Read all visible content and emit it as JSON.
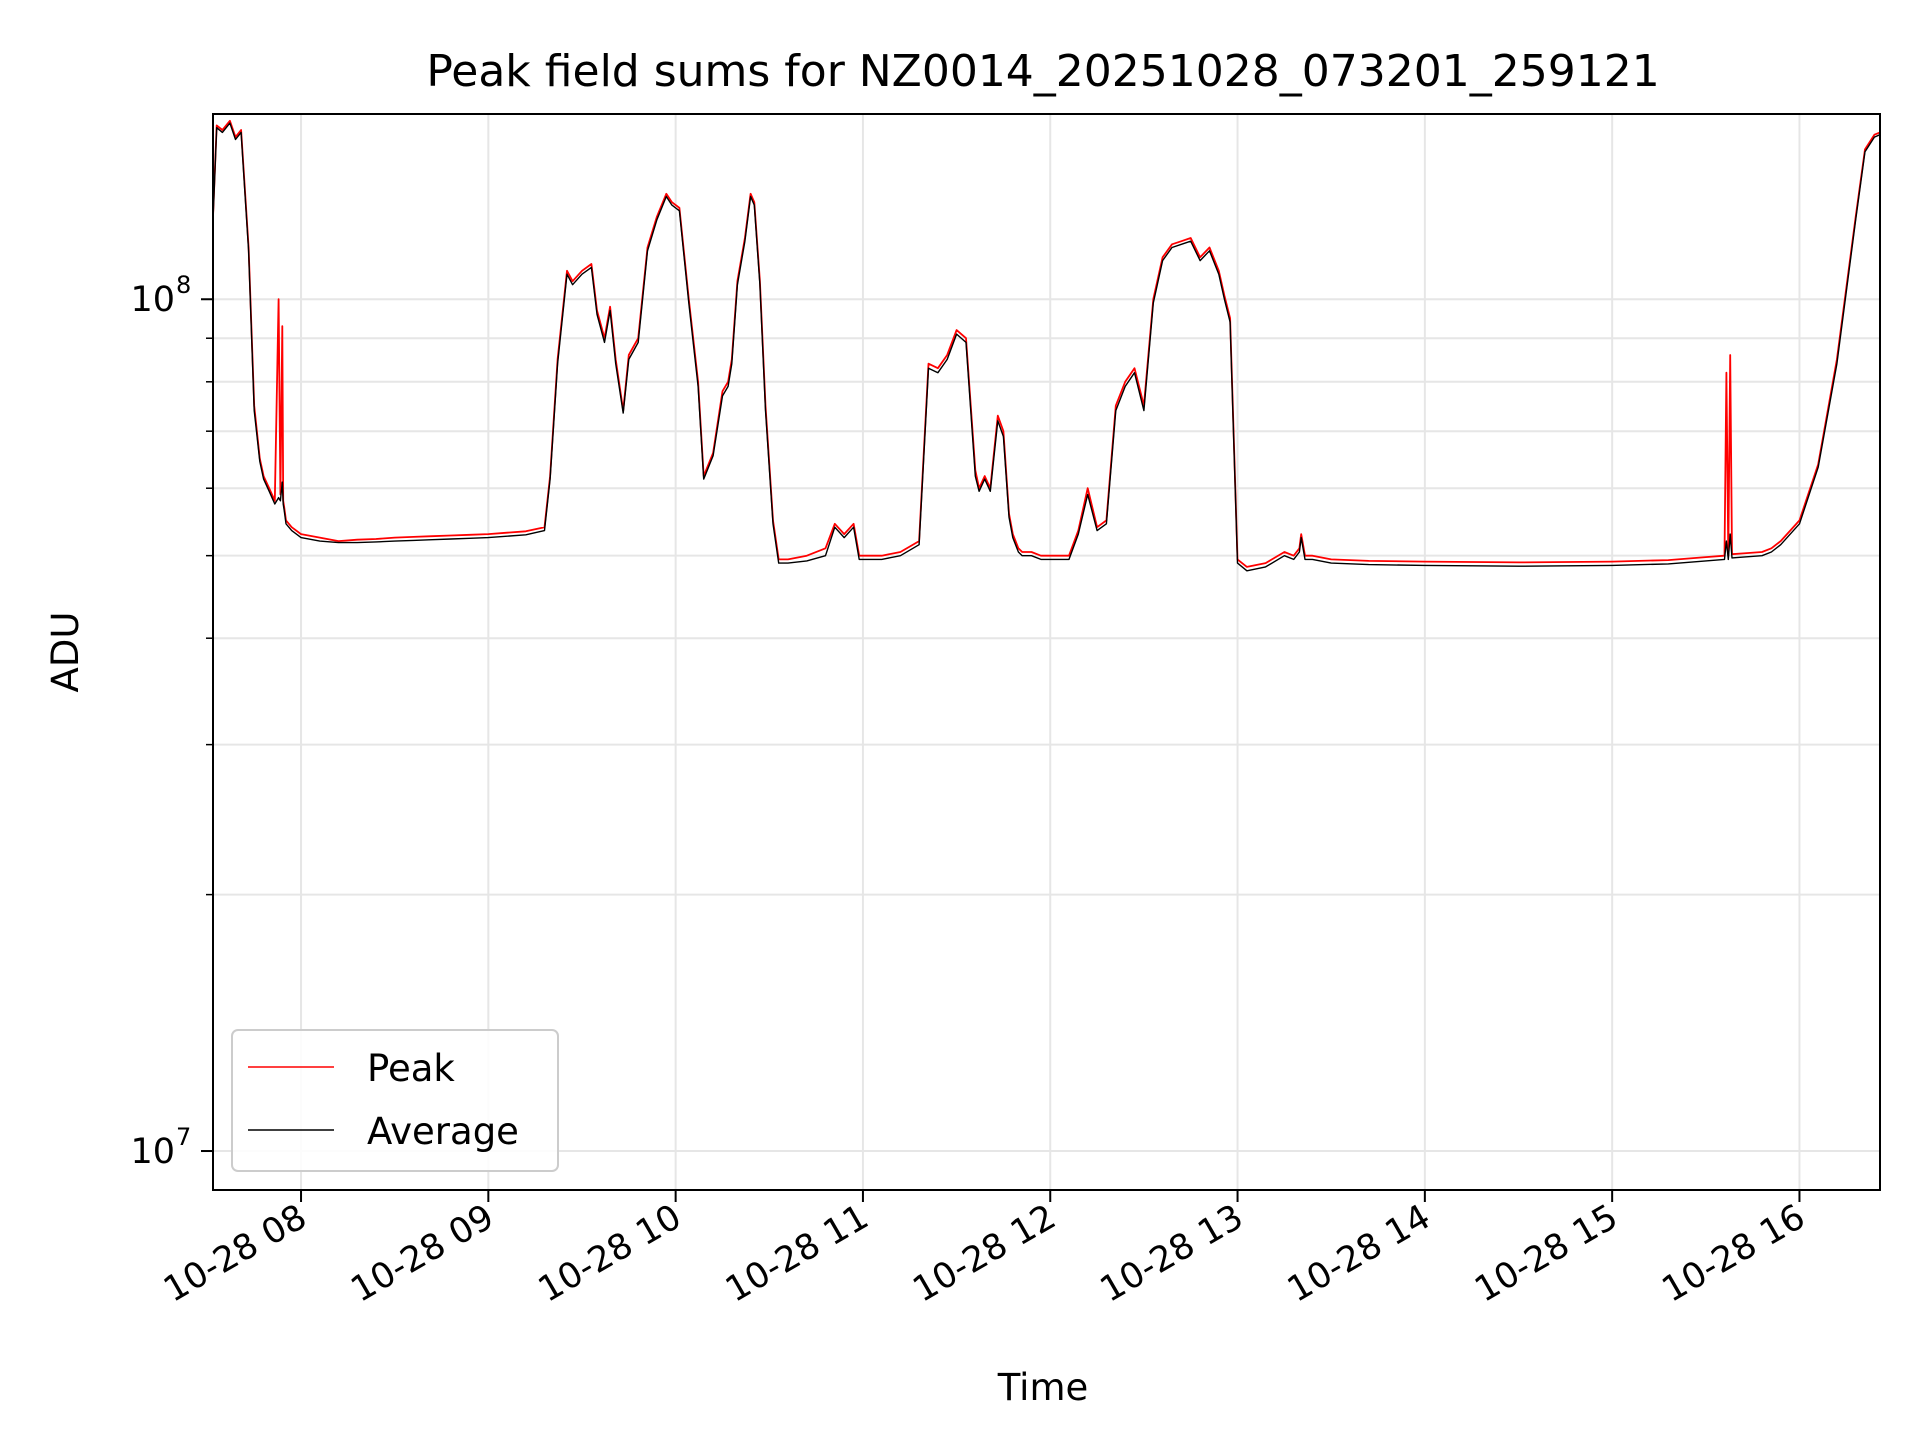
{
  "chart_data": {
    "type": "line",
    "title": "Peak field sums for NZ0014_20251028_073201_259121",
    "xlabel": "Time",
    "ylabel": "ADU",
    "yscale": "log",
    "xlim_hours": [
      7.53,
      16.43
    ],
    "ylim": [
      9000000,
      165000000
    ],
    "grid": true,
    "legend_position": "bottom-left",
    "x_tick_values": [
      8,
      9,
      10,
      11,
      12,
      13,
      14,
      15,
      16
    ],
    "x_tick_labels": [
      "10-28 08",
      "10-28 09",
      "10-28 10",
      "10-28 11",
      "10-28 12",
      "10-28 13",
      "10-28 14",
      "10-28 15",
      "10-28 16"
    ],
    "y_major_ticks": [
      {
        "value": 10000000,
        "base": "10",
        "exp": "7"
      },
      {
        "value": 100000000,
        "base": "10",
        "exp": "8"
      }
    ],
    "y_minor_ticks": [
      20000000,
      30000000,
      40000000,
      50000000,
      60000000,
      70000000,
      80000000,
      90000000
    ],
    "series": [
      {
        "name": "Peak",
        "color": "#ff0000",
        "x_hours": [
          7.53,
          7.55,
          7.58,
          7.62,
          7.65,
          7.68,
          7.72,
          7.75,
          7.78,
          7.8,
          7.83,
          7.86,
          7.88,
          7.89,
          7.9,
          7.905,
          7.91,
          7.92,
          7.95,
          8.0,
          8.1,
          8.2,
          8.3,
          8.4,
          8.5,
          8.6,
          8.7,
          8.8,
          8.9,
          9.0,
          9.1,
          9.2,
          9.3,
          9.33,
          9.37,
          9.42,
          9.45,
          9.5,
          9.55,
          9.58,
          9.62,
          9.65,
          9.68,
          9.72,
          9.75,
          9.8,
          9.85,
          9.9,
          9.95,
          9.98,
          10.02,
          10.07,
          10.12,
          10.15,
          10.2,
          10.25,
          10.28,
          10.3,
          10.33,
          10.37,
          10.4,
          10.42,
          10.45,
          10.48,
          10.52,
          10.55,
          10.6,
          10.7,
          10.8,
          10.85,
          10.9,
          10.95,
          10.98,
          11.0,
          11.05,
          11.1,
          11.2,
          11.3,
          11.35,
          11.4,
          11.45,
          11.5,
          11.55,
          11.6,
          11.62,
          11.65,
          11.68,
          11.72,
          11.75,
          11.78,
          11.8,
          11.83,
          11.85,
          11.9,
          11.95,
          12.0,
          12.1,
          12.15,
          12.2,
          12.25,
          12.3,
          12.35,
          12.4,
          12.45,
          12.5,
          12.55,
          12.6,
          12.65,
          12.7,
          12.75,
          12.8,
          12.85,
          12.9,
          12.93,
          12.96,
          13.0,
          13.05,
          13.15,
          13.25,
          13.3,
          13.33,
          13.34,
          13.36,
          13.4,
          13.5,
          13.7,
          14.0,
          14.5,
          15.0,
          15.3,
          15.5,
          15.6,
          15.61,
          15.62,
          15.63,
          15.64,
          15.7,
          15.8,
          15.85,
          15.9,
          16.0,
          16.1,
          16.2,
          16.3,
          16.35,
          16.4,
          16.43
        ],
        "values": [
          125000000,
          160000000,
          158000000,
          162000000,
          155000000,
          158000000,
          115000000,
          75000000,
          65000000,
          62000000,
          60000000,
          58000000,
          100000000,
          59000000,
          93000000,
          58000000,
          57000000,
          55000000,
          54000000,
          53000000,
          52500000,
          52000000,
          52200000,
          52300000,
          52500000,
          52600000,
          52700000,
          52800000,
          52900000,
          53000000,
          53200000,
          53400000,
          54000000,
          62000000,
          85000000,
          108000000,
          105000000,
          108000000,
          110000000,
          97000000,
          90000000,
          98000000,
          85000000,
          74000000,
          86000000,
          90000000,
          115000000,
          125000000,
          133000000,
          130000000,
          128000000,
          100000000,
          80000000,
          62000000,
          66000000,
          78000000,
          80000000,
          85000000,
          105000000,
          118000000,
          133000000,
          130000000,
          105000000,
          75000000,
          55000000,
          49500000,
          49500000,
          50000000,
          51000000,
          54500000,
          53000000,
          54500000,
          50000000,
          50000000,
          50000000,
          50000000,
          50500000,
          52000000,
          84000000,
          83000000,
          86000000,
          92000000,
          90000000,
          63000000,
          60000000,
          62000000,
          60000000,
          73000000,
          70000000,
          56000000,
          53000000,
          51000000,
          50500000,
          50500000,
          50000000,
          50000000,
          50000000,
          53500000,
          60000000,
          54000000,
          55000000,
          75000000,
          80000000,
          83000000,
          75000000,
          100000000,
          112000000,
          116000000,
          117000000,
          118000000,
          112000000,
          115000000,
          108000000,
          101000000,
          95000000,
          49500000,
          48500000,
          49000000,
          50500000,
          50000000,
          51000000,
          53000000,
          50000000,
          50000000,
          49500000,
          49300000,
          49200000,
          49100000,
          49200000,
          49400000,
          49800000,
          50000000,
          82000000,
          50000000,
          86000000,
          50200000,
          50300000,
          50500000,
          51000000,
          52000000,
          55000000,
          64000000,
          85000000,
          125000000,
          150000000,
          156000000,
          157000000
        ]
      },
      {
        "name": "Average",
        "color": "#000000",
        "x_hours": [
          7.53,
          7.55,
          7.58,
          7.62,
          7.65,
          7.68,
          7.72,
          7.75,
          7.78,
          7.8,
          7.83,
          7.86,
          7.88,
          7.89,
          7.9,
          7.905,
          7.91,
          7.92,
          7.95,
          8.0,
          8.1,
          8.2,
          8.3,
          8.4,
          8.5,
          8.6,
          8.7,
          8.8,
          8.9,
          9.0,
          9.1,
          9.2,
          9.3,
          9.33,
          9.37,
          9.42,
          9.45,
          9.5,
          9.55,
          9.58,
          9.62,
          9.65,
          9.68,
          9.72,
          9.75,
          9.8,
          9.85,
          9.9,
          9.95,
          9.98,
          10.02,
          10.07,
          10.12,
          10.15,
          10.2,
          10.25,
          10.28,
          10.3,
          10.33,
          10.37,
          10.4,
          10.42,
          10.45,
          10.48,
          10.52,
          10.55,
          10.6,
          10.7,
          10.8,
          10.85,
          10.9,
          10.95,
          10.98,
          11.0,
          11.05,
          11.1,
          11.2,
          11.3,
          11.35,
          11.4,
          11.45,
          11.5,
          11.55,
          11.6,
          11.62,
          11.65,
          11.68,
          11.72,
          11.75,
          11.78,
          11.8,
          11.83,
          11.85,
          11.9,
          11.95,
          12.0,
          12.1,
          12.15,
          12.2,
          12.25,
          12.3,
          12.35,
          12.4,
          12.45,
          12.5,
          12.55,
          12.6,
          12.65,
          12.7,
          12.75,
          12.8,
          12.85,
          12.9,
          12.93,
          12.96,
          13.0,
          13.05,
          13.15,
          13.25,
          13.3,
          13.33,
          13.34,
          13.36,
          13.4,
          13.5,
          13.7,
          14.0,
          14.5,
          15.0,
          15.3,
          15.5,
          15.6,
          15.61,
          15.62,
          15.63,
          15.64,
          15.7,
          15.8,
          15.85,
          15.9,
          16.0,
          16.1,
          16.2,
          16.3,
          16.35,
          16.4,
          16.43
        ],
        "values": [
          124000000,
          159000000,
          157000000,
          161000000,
          154000000,
          157000000,
          114000000,
          74000000,
          64500000,
          61500000,
          59500000,
          57500000,
          58500000,
          58000000,
          61000000,
          57500000,
          56500000,
          54500000,
          53500000,
          52500000,
          52000000,
          51800000,
          51800000,
          51900000,
          52000000,
          52100000,
          52200000,
          52300000,
          52400000,
          52500000,
          52700000,
          52900000,
          53500000,
          61500000,
          84000000,
          107000000,
          104000000,
          107000000,
          109000000,
          96000000,
          89000000,
          97000000,
          84000000,
          73500000,
          85000000,
          89000000,
          114000000,
          124000000,
          132000000,
          129000000,
          127000000,
          99000000,
          79000000,
          61500000,
          65500000,
          77000000,
          79000000,
          84000000,
          104000000,
          117000000,
          132000000,
          129000000,
          104000000,
          74000000,
          54500000,
          49000000,
          49000000,
          49300000,
          50000000,
          54000000,
          52500000,
          54000000,
          49500000,
          49500000,
          49500000,
          49500000,
          50000000,
          51500000,
          83000000,
          82000000,
          85000000,
          91000000,
          89000000,
          62000000,
          59500000,
          61500000,
          59500000,
          72000000,
          69000000,
          55500000,
          52500000,
          50500000,
          50000000,
          50000000,
          49500000,
          49500000,
          49500000,
          53000000,
          59000000,
          53500000,
          54500000,
          74000000,
          79000000,
          82000000,
          74000000,
          99000000,
          111000000,
          115000000,
          116000000,
          117000000,
          111000000,
          114000000,
          107000000,
          100000000,
          94000000,
          49000000,
          48000000,
          48500000,
          50000000,
          49500000,
          50500000,
          52500000,
          49500000,
          49500000,
          49000000,
          48800000,
          48700000,
          48600000,
          48700000,
          48900000,
          49300000,
          49500000,
          52000000,
          49500000,
          53000000,
          49700000,
          49800000,
          50000000,
          50500000,
          51500000,
          54500000,
          63500000,
          84000000,
          124000000,
          149000000,
          155000000,
          156000000
        ]
      }
    ]
  }
}
